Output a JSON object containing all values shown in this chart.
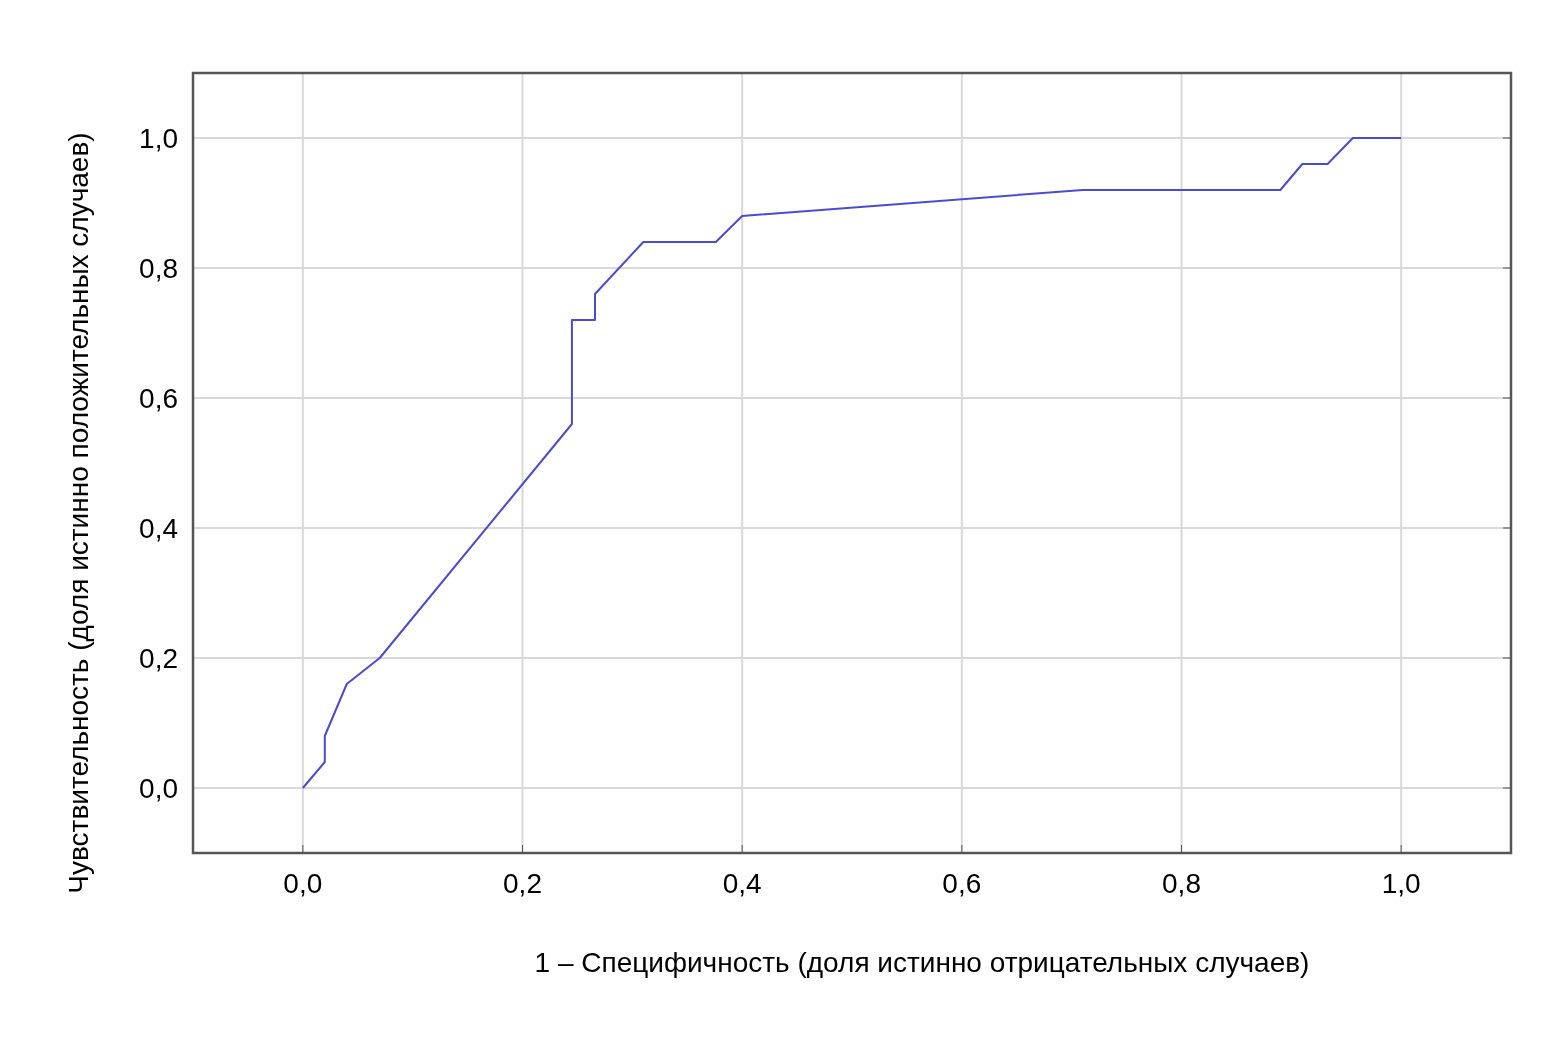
{
  "chart_data": {
    "type": "line",
    "xlabel": "1 – Специфичность (доля истинно отрицательных случаев)",
    "ylabel": "Чувствительность (доля истинно положительных случаев)",
    "series": [
      {
        "color": "#4b4bd2",
        "x": [
          0,
          0.02,
          0.02,
          0.04,
          0.07,
          0.245,
          0.245,
          0.266,
          0.266,
          0.31,
          0.376,
          0.4,
          0.71,
          0.89,
          0.91,
          0.933,
          0.956,
          1.0
        ],
        "values": [
          0,
          0.04,
          0.08,
          0.16,
          0.2,
          0.56,
          0.72,
          0.72,
          0.76,
          0.84,
          0.84,
          0.88,
          0.92,
          0.92,
          0.96,
          0.96,
          1.0,
          1.0
        ]
      }
    ],
    "xlim": [
      -0.1,
      1.1
    ],
    "ylim": [
      -0.1,
      1.1
    ],
    "xticks": [
      {
        "value": 0,
        "label": "0,0"
      },
      {
        "value": 0.2,
        "label": "0,2"
      },
      {
        "value": 0.4,
        "label": "0,4"
      },
      {
        "value": 0.6,
        "label": "0,6"
      },
      {
        "value": 0.8,
        "label": "0,8"
      },
      {
        "value": 1.0,
        "label": "1,0"
      }
    ],
    "yticks": [
      {
        "value": 0,
        "label": "0,0"
      },
      {
        "value": 0.2,
        "label": "0,2"
      },
      {
        "value": 0.4,
        "label": "0,4"
      },
      {
        "value": 0.6,
        "label": "0,6"
      },
      {
        "value": 0.8,
        "label": "0,8"
      },
      {
        "value": 1.0,
        "label": "1,0"
      }
    ],
    "grid": true
  }
}
